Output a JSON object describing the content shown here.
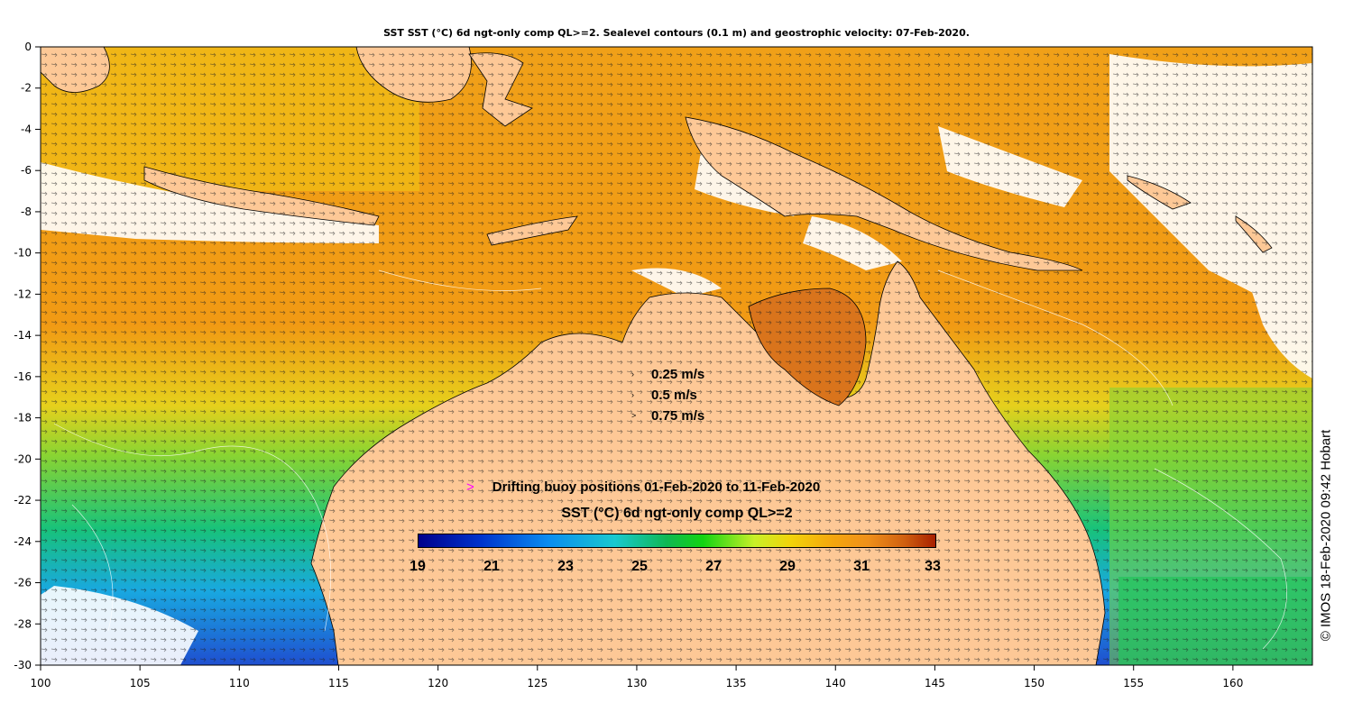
{
  "title": "SST SST (°C) 6d ngt-only comp QL>=2. Sealevel contours (0.1 m) and geostrophic velocity: 07-Feb-2020.",
  "x_ticks": [
    "100",
    "105",
    "110",
    "115",
    "120",
    "125",
    "130",
    "135",
    "140",
    "145",
    "150",
    "155",
    "160"
  ],
  "y_ticks": [
    "0",
    "-2",
    "-4",
    "-6",
    "-8",
    "-10",
    "-12",
    "-14",
    "-16",
    "-18",
    "-20",
    "-22",
    "-24",
    "-26",
    "-28",
    "-30"
  ],
  "velocity_key": [
    "0.25 m/s",
    "0.5 m/s",
    "0.75 m/s"
  ],
  "buoy_label": "Drifting buoy positions 01-Feb-2020 to 11-Feb-2020",
  "buoy_marker": ">",
  "colorbar_title": "SST (°C) 6d ngt-only comp QL>=2",
  "colorbar_ticks": [
    "19",
    "21",
    "23",
    "25",
    "27",
    "29",
    "31",
    "33"
  ],
  "credit": "© IMOS 18-Feb-2020 09:42 Hobart",
  "colors": {
    "land": "#fdc896",
    "sst_warm": "#f29a16",
    "sst_mid": "#e8d620",
    "sst_cool": "#22c44a",
    "sst_cold": "#1a8cf0",
    "cloud": "#ffffff"
  }
}
